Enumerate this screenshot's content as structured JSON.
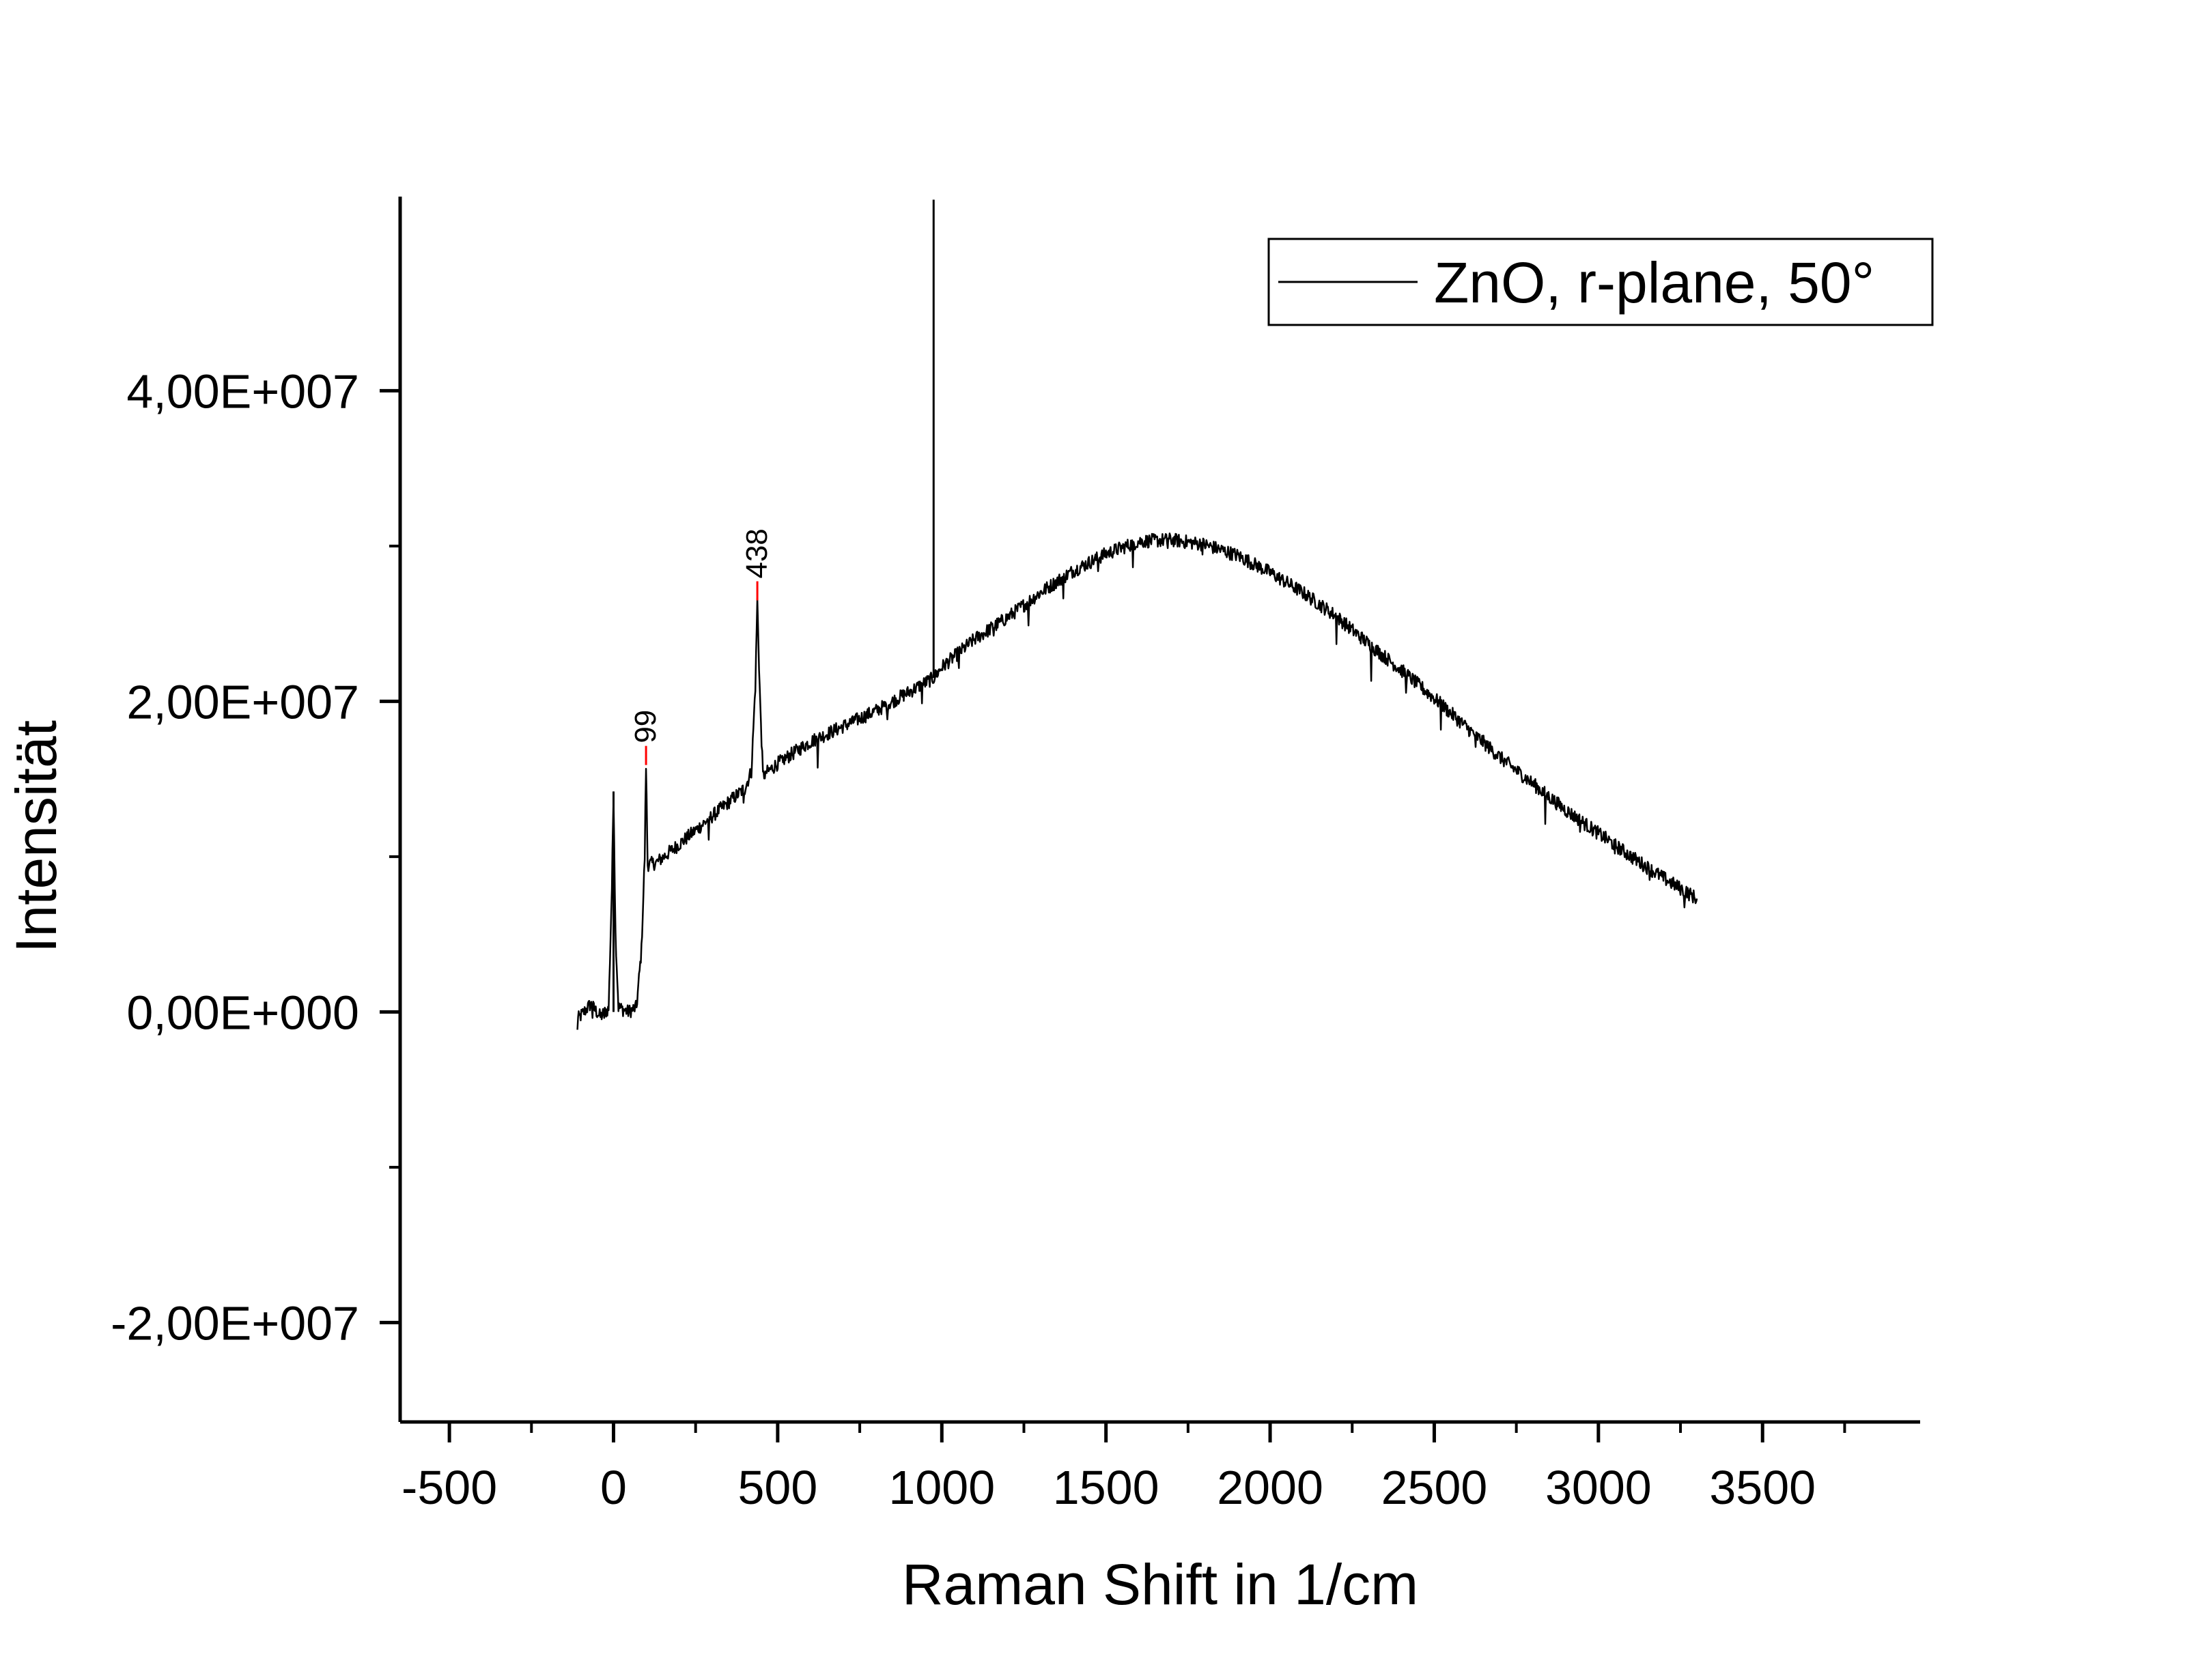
{
  "chart_data": {
    "type": "line",
    "title": "",
    "xlabel": "Raman Shift in 1/cm",
    "ylabel": "Intensität",
    "xlim": [
      -650,
      3980
    ],
    "ylim": [
      -26400000,
      52500000
    ],
    "x_ticks": [
      -500,
      0,
      500,
      1000,
      1500,
      2000,
      2500,
      3000,
      3500
    ],
    "x_tick_labels": [
      "-500",
      "0",
      "500",
      "1000",
      "1500",
      "2000",
      "2500",
      "3000",
      "3500"
    ],
    "x_minor_ticks": [
      -250,
      250,
      750,
      1250,
      1750,
      2250,
      2750,
      3250,
      3750
    ],
    "y_ticks": [
      -20000000,
      0,
      20000000,
      40000000
    ],
    "y_tick_labels": [
      "-2,00E+007",
      "0,00E+000",
      "2,00E+007",
      "4,00E+007"
    ],
    "y_minor_ticks": [
      -10000000,
      10000000,
      30000000
    ],
    "grid": false,
    "legend_position": "top-right",
    "series": [
      {
        "name": "ZnO, r-plane, 50°",
        "color": "#000000",
        "points": [
          [
            -110,
            -500000
          ],
          [
            -70,
            500000
          ],
          [
            -40,
            -300000
          ],
          [
            -15,
            200000
          ],
          [
            -5,
            8000000
          ],
          [
            0,
            14200000
          ],
          [
            6,
            5000000
          ],
          [
            15,
            300000
          ],
          [
            45,
            0
          ],
          [
            70,
            300000
          ],
          [
            85,
            4000000
          ],
          [
            95,
            10000000
          ],
          [
            99,
            15900000
          ],
          [
            104,
            9500000
          ],
          [
            130,
            9600000
          ],
          [
            200,
            10800000
          ],
          [
            300,
            12600000
          ],
          [
            400,
            14400000
          ],
          [
            420,
            15500000
          ],
          [
            432,
            21000000
          ],
          [
            438,
            26500000
          ],
          [
            445,
            21000000
          ],
          [
            455,
            15200000
          ],
          [
            500,
            16000000
          ],
          [
            600,
            17400000
          ],
          [
            700,
            18400000
          ],
          [
            800,
            19400000
          ],
          [
            900,
            20600000
          ],
          [
            975,
            21500000
          ],
          [
            1000,
            22200000
          ],
          [
            1100,
            24000000
          ],
          [
            1200,
            25400000
          ],
          [
            1300,
            27000000
          ],
          [
            1400,
            28400000
          ],
          [
            1500,
            29500000
          ],
          [
            1600,
            30300000
          ],
          [
            1700,
            30400000
          ],
          [
            1800,
            30100000
          ],
          [
            1900,
            29400000
          ],
          [
            2000,
            28300000
          ],
          [
            2100,
            27000000
          ],
          [
            2200,
            25500000
          ],
          [
            2300,
            23700000
          ],
          [
            2400,
            22000000
          ],
          [
            2500,
            20200000
          ],
          [
            2600,
            18300000
          ],
          [
            2700,
            16400000
          ],
          [
            2800,
            14700000
          ],
          [
            2900,
            13000000
          ],
          [
            3000,
            11500000
          ],
          [
            3100,
            10000000
          ],
          [
            3200,
            8600000
          ],
          [
            3300,
            7300000
          ]
        ],
        "spikes": [
          {
            "x": 0,
            "top": 14200000
          },
          {
            "x": 975,
            "top": 52300000,
            "base": 21500000
          }
        ]
      }
    ],
    "annotations": [
      {
        "x": 99,
        "y": 15900000,
        "text": "99",
        "marker_color": "#ff0000"
      },
      {
        "x": 438,
        "y": 26500000,
        "text": "438",
        "marker_color": "#ff0000"
      }
    ]
  }
}
